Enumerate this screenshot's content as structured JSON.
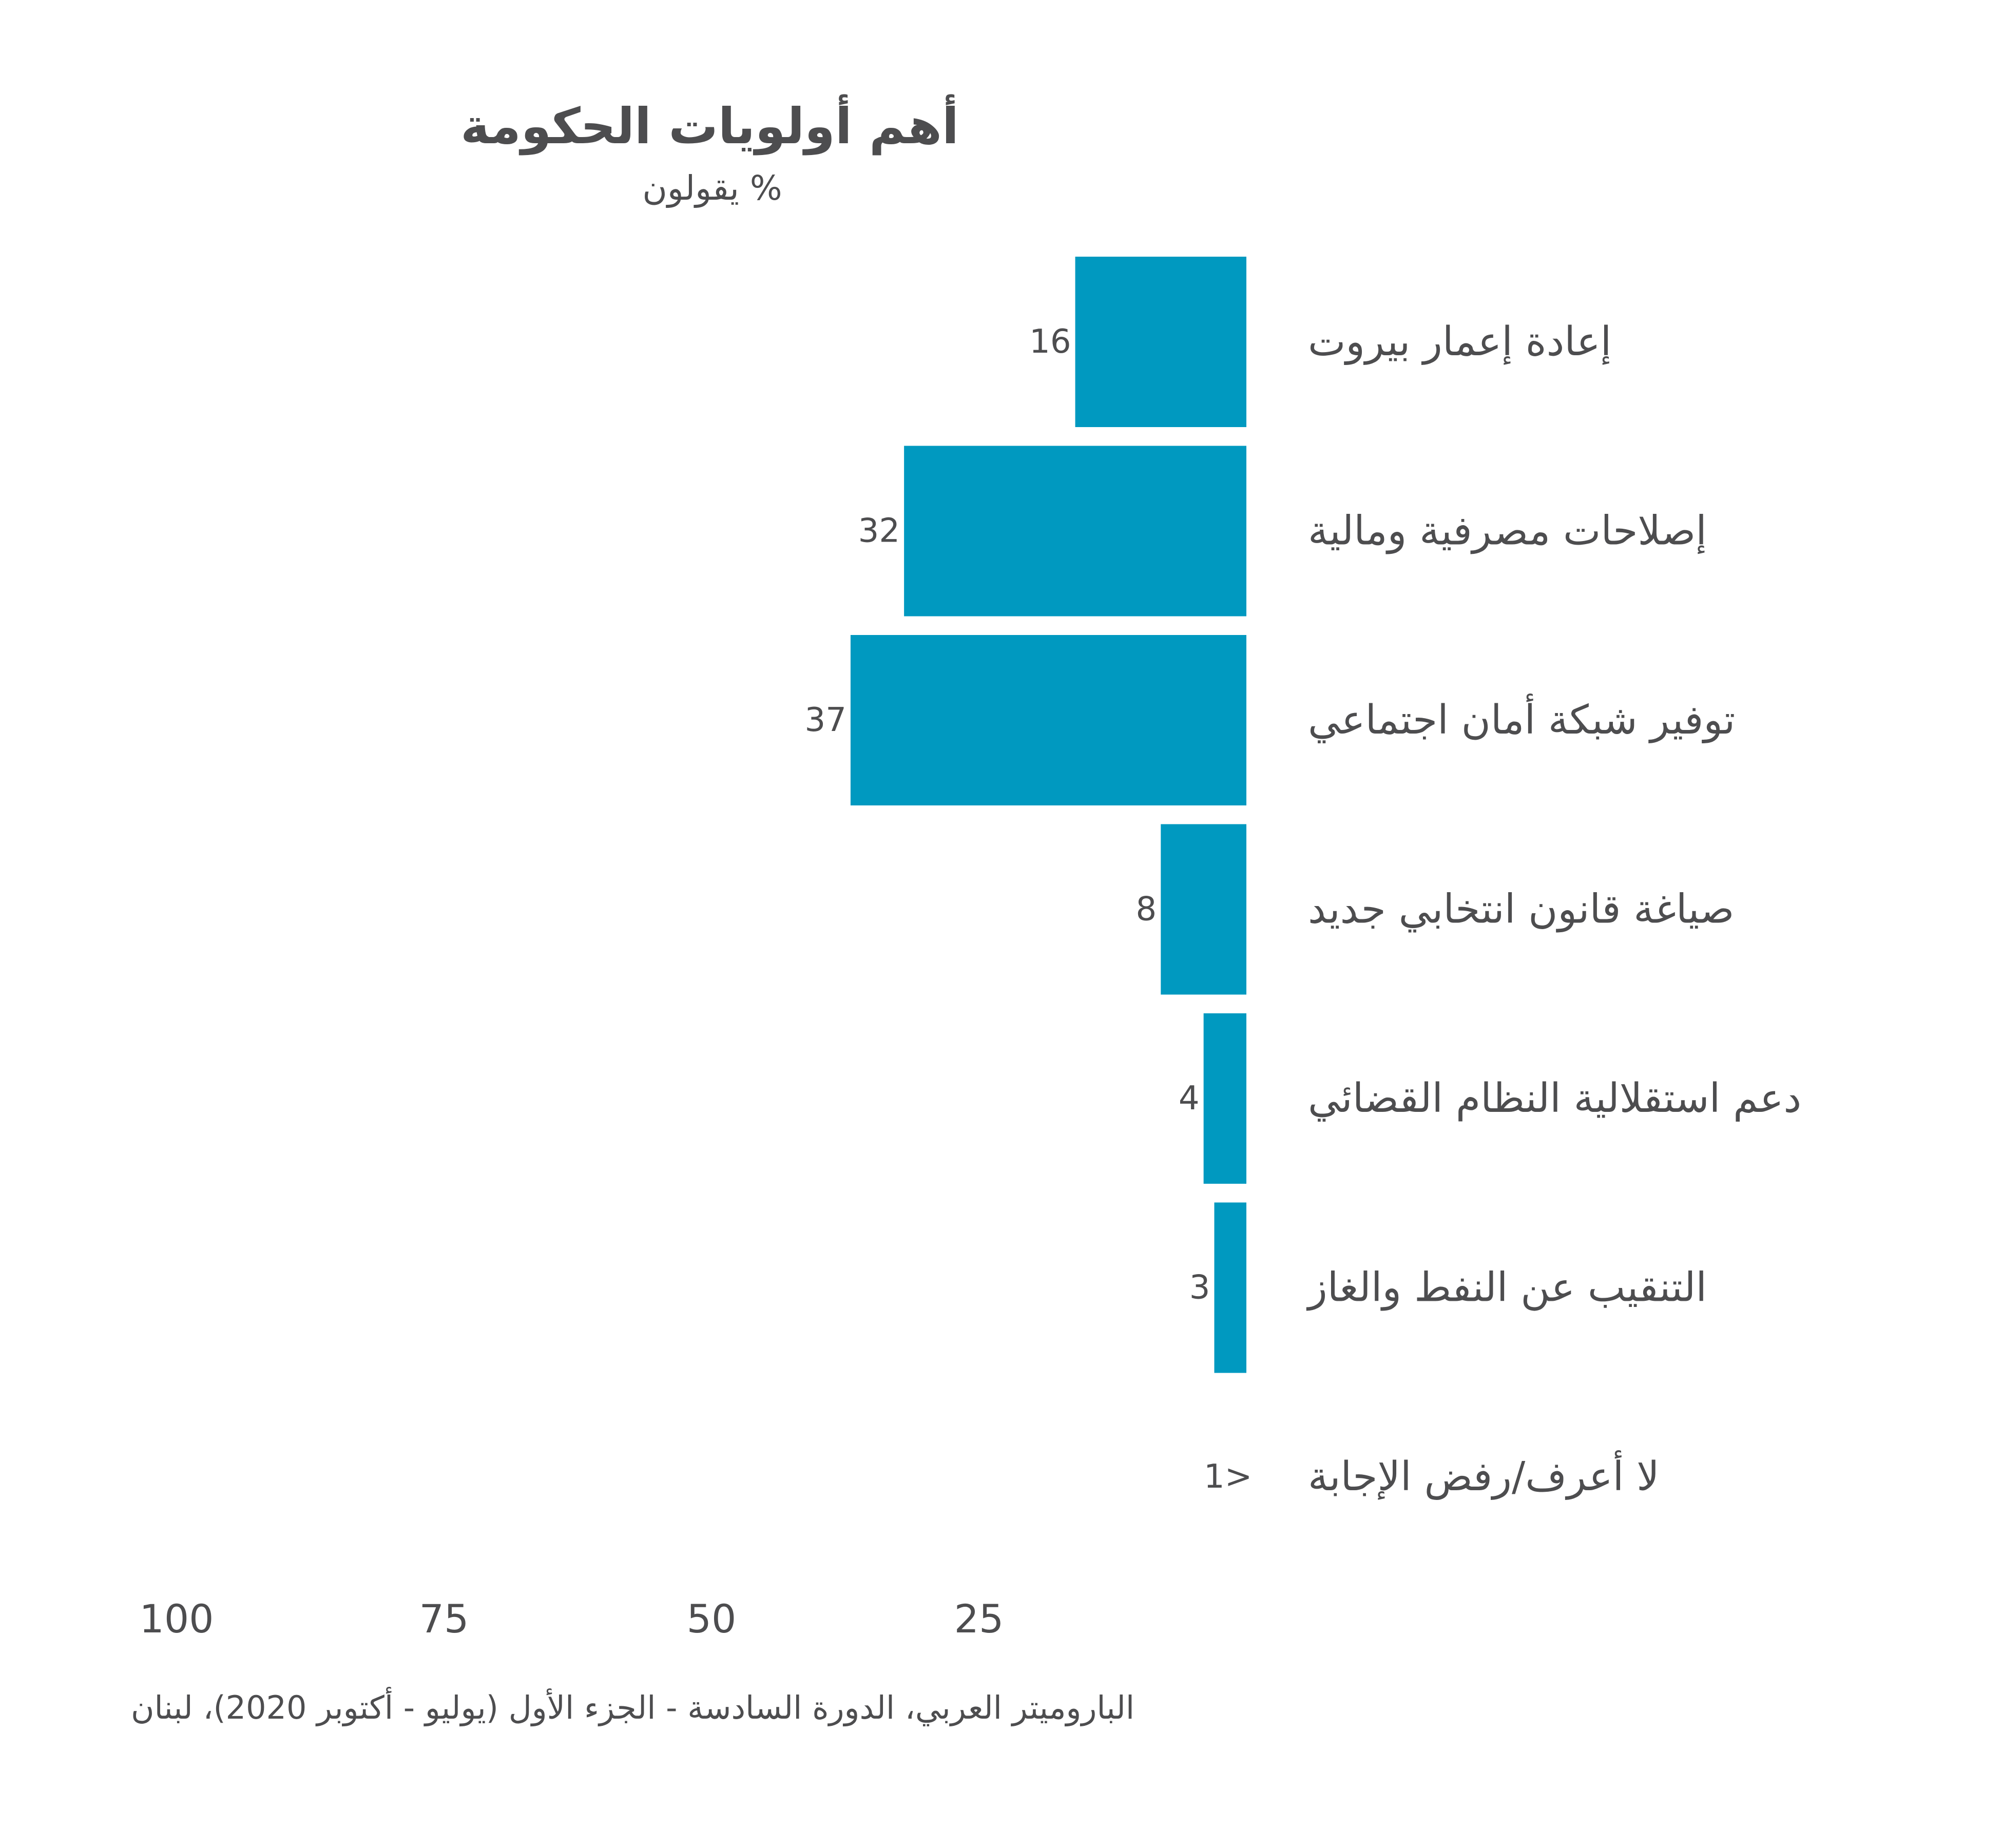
{
  "chart_data": {
    "type": "bar",
    "orientation": "horizontal",
    "title": "أهم أولويات الحكومة",
    "subtitle": "% يقولون",
    "categories": [
      "إعادة إعمار بيروت",
      "إصلاحات مصرفية ومالية",
      "توفير شبكة أمان اجتماعي",
      "صياغة قانون انتخابي جديد",
      "دعم استقلالية النظام القضائي",
      "التنقيب عن النفط والغاز",
      "لا أعرف/رفض الإجابة"
    ],
    "values": [
      16,
      32,
      37,
      8,
      4,
      3,
      0.5
    ],
    "value_labels": [
      "16",
      "32",
      "37",
      "8",
      "4",
      "3",
      "1>"
    ],
    "xlim": [
      0,
      100
    ],
    "x_ticks": [
      100,
      75,
      50,
      25
    ],
    "bar_color": "#0099c0",
    "grid": false,
    "legend": "none"
  },
  "source": "الباروميتر العربي، الدورة السادسة - الجزء الأول (يوليو - أكتوبر 2020)،  لبنان"
}
